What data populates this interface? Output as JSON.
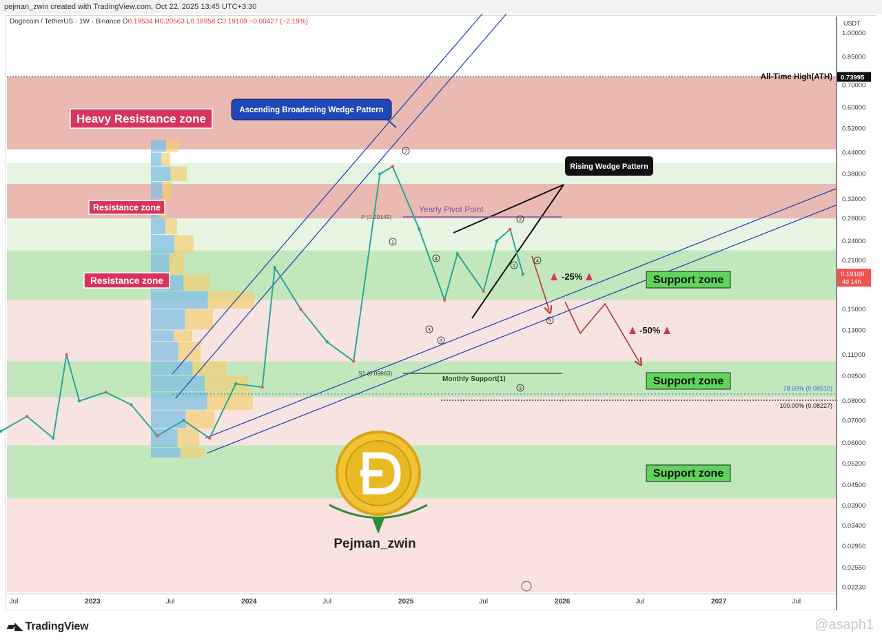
{
  "header": {
    "created_by": "pejman_zwin created with TradingView.com, Oct 22, 2025 13:45 UTC+3:30",
    "symbol": "Dogecoin / TetherUS · 1W · Binance",
    "o_label": "O",
    "o_value": "0.19534",
    "h_label": "H",
    "h_value": "0.20563",
    "l_label": "L",
    "l_value": "0.18958",
    "c_label": "C",
    "c_value": "0.19108",
    "change": "−0.00427 (−2.19%)"
  },
  "footer": {
    "brand": "TradingView",
    "watermark": "@asaph1"
  },
  "chart_data": {
    "type": "line",
    "quote_currency": "USDT",
    "y_scale": "log",
    "ylim": [
      0.0215,
      1.12
    ],
    "y_ticks": [
      {
        "value": 1.0,
        "label": "1.00000"
      },
      {
        "value": 0.85,
        "label": "0.85000"
      },
      {
        "value": 0.7,
        "label": "0.70000"
      },
      {
        "value": 0.6,
        "label": "0.60000"
      },
      {
        "value": 0.52,
        "label": "0.52000"
      },
      {
        "value": 0.44,
        "label": "0.44000"
      },
      {
        "value": 0.38,
        "label": "0.38000"
      },
      {
        "value": 0.32,
        "label": "0.32000"
      },
      {
        "value": 0.28,
        "label": "0.28000"
      },
      {
        "value": 0.24,
        "label": "0.24000"
      },
      {
        "value": 0.21,
        "label": "0.21000"
      },
      {
        "value": 0.15,
        "label": "0.15000"
      },
      {
        "value": 0.13,
        "label": "0.13000"
      },
      {
        "value": 0.11,
        "label": "0.11000"
      },
      {
        "value": 0.095,
        "label": "0.09500"
      },
      {
        "value": 0.08,
        "label": "0.08000"
      },
      {
        "value": 0.07,
        "label": "0.07000"
      },
      {
        "value": 0.06,
        "label": "0.06000"
      },
      {
        "value": 0.052,
        "label": "0.05200"
      },
      {
        "value": 0.045,
        "label": "0.04500"
      },
      {
        "value": 0.039,
        "label": "0.03900"
      },
      {
        "value": 0.034,
        "label": "0.03400"
      },
      {
        "value": 0.0295,
        "label": "0.02950"
      },
      {
        "value": 0.0255,
        "label": "0.02550"
      },
      {
        "value": 0.0223,
        "label": "0.02230"
      }
    ],
    "x_ticks": [
      {
        "label": "Jul",
        "date": "2022-07"
      },
      {
        "label": "2023",
        "date": "2023-01"
      },
      {
        "label": "Jul",
        "date": "2023-07"
      },
      {
        "label": "2024",
        "date": "2024-01"
      },
      {
        "label": "Jul",
        "date": "2024-07"
      },
      {
        "label": "2025",
        "date": "2025-01"
      },
      {
        "label": "Jul",
        "date": "2025-07"
      },
      {
        "label": "2026",
        "date": "2026-01"
      },
      {
        "label": "Jul",
        "date": "2026-07"
      },
      {
        "label": "2027",
        "date": "2027-01"
      },
      {
        "label": "Jul",
        "date": "2027-07"
      }
    ],
    "series": [
      {
        "x": [
          "2022-06",
          "2022-08",
          "2022-10",
          "2022-11",
          "2022-12",
          "2023-02",
          "2023-04",
          "2023-06",
          "2023-08",
          "2023-10",
          "2023-12",
          "2024-02",
          "2024-03",
          "2024-05",
          "2024-07",
          "2024-09",
          "2024-11",
          "2024-12",
          "2025-02",
          "2025-04",
          "2025-05",
          "2025-07",
          "2025-08",
          "2025-09",
          "2025-10"
        ],
        "values": [
          0.065,
          0.072,
          0.062,
          0.11,
          0.08,
          0.085,
          0.078,
          0.063,
          0.07,
          0.062,
          0.09,
          0.088,
          0.2,
          0.15,
          0.12,
          0.105,
          0.38,
          0.4,
          0.26,
          0.16,
          0.22,
          0.17,
          0.24,
          0.26,
          0.191
        ]
      }
    ],
    "last_price": "0.19108",
    "countdown": "4d 14h",
    "ath_price": "0.73995",
    "ath_label": "All-Time High(ATH)",
    "zones": [
      {
        "kind": "resistance",
        "label": "Heavy Resistance zone",
        "from": 0.45,
        "to": 0.74
      },
      {
        "kind": "resistance",
        "label": "Resistance zone",
        "from": 0.28,
        "to": 0.355
      },
      {
        "kind": "support",
        "label": "Support zone",
        "from": 0.16,
        "to": 0.225
      },
      {
        "kind": "resistance",
        "label": "Resistance zone",
        "from": 0.16,
        "to": 0.225
      },
      {
        "kind": "support",
        "label": "Support zone",
        "from": 0.082,
        "to": 0.105
      },
      {
        "kind": "support",
        "label": "Support zone",
        "from": 0.041,
        "to": 0.059
      }
    ],
    "annotations": {
      "broadening_wedge": "Ascending Broadening Wedge Pattern",
      "rising_wedge": "Rising Wedge Pattern",
      "yearly_pivot": "Yearly Pivot Point",
      "pivot_p": "P (0.29149)",
      "pivot_s1": "S1 (0.09863)",
      "monthly_support": "Monthly Support(1)",
      "fib_786": "78.60% (0.08510)",
      "fib_100": "100.00% (0.08227)",
      "target_25": "-25%",
      "target_50": "-50%",
      "author": "Pejman_zwin"
    },
    "colors": {
      "resistance_fill": "#e8b3aa",
      "support_fill": "#b9e3b0",
      "label_red": "#d9335b",
      "support_label_bg": "#5fd45b",
      "pattern_box": "#1f47b8",
      "trendline": "#2449b4",
      "pivot_purple": "#8a4fa3",
      "arrow_red": "#b8323a",
      "doge_gold": "#e8b923"
    }
  }
}
